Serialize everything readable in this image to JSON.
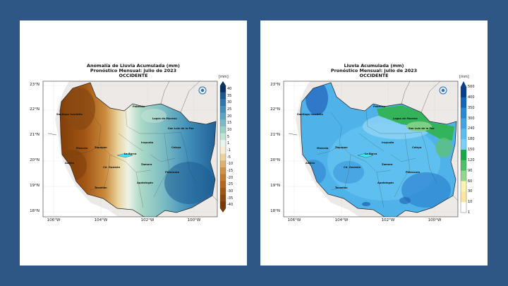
{
  "colors": {
    "background": "#2e5786",
    "card": "#ffffff",
    "land_outside": "#ece9e6",
    "sea": "#ffffff"
  },
  "maps": [
    {
      "title_line1": "Anomalía de Lluvia Acumulada (mm)",
      "title_line2": "Pronóstico Mensual: julio de 2023",
      "title_line3": "OCCIDENTE",
      "unit": "[mm]",
      "colorbar_ticks": [
        "40",
        "35",
        "30",
        "25",
        "20",
        "15",
        "10",
        "5",
        "1",
        "-1",
        "-5",
        "-10",
        "-15",
        "-20",
        "-25",
        "-30",
        "-35",
        "-40"
      ],
      "colorbar_colors": [
        "#053061",
        "#1a5a91",
        "#2e77ac",
        "#418fba",
        "#5aa5c4",
        "#79bbc4",
        "#9ad1c6",
        "#c0e3d6",
        "#eaf3ec",
        "#f6ecd4",
        "#ead39b",
        "#ddb06b",
        "#cf9143",
        "#c27a2b",
        "#b3661c",
        "#a25513",
        "#8e460d",
        "#7a3a08"
      ],
      "latitude_labels": [
        "23°N",
        "22°N",
        "21°N",
        "20°N",
        "19°N",
        "18°N"
      ],
      "longitude_labels": [
        "106°W",
        "104°W",
        "102°W",
        "100°W"
      ],
      "cities": [
        "Santiago Ixcuintla",
        "Pabellón",
        "Lagos de Moreno",
        "San Luis de la Paz",
        "Mezcala",
        "Zapopan",
        "Irapuato",
        "Celaya",
        "Autlán",
        "La Barca",
        "Cd. Guzmán",
        "Zamora",
        "Tecomán",
        "Pátzcuaro",
        "Apatzingán"
      ],
      "logo_text": "Climatología"
    },
    {
      "title_line1": "Lluvia Acumulada (mm)",
      "title_line2": "Pronóstico Mensual: julio de 2023",
      "title_line3": "OCCIDENTE",
      "unit": "[mm]",
      "colorbar_ticks": [
        "500",
        "400",
        "350",
        "300",
        "240",
        "180",
        "150",
        "120",
        "90",
        "60",
        "30",
        "10",
        "1"
      ],
      "colorbar_colors": [
        "#083e8c",
        "#1467b8",
        "#2a88d2",
        "#42a4e4",
        "#5cbdf0",
        "#7cd0f7",
        "#16a84b",
        "#4cc06a",
        "#93d98b",
        "#fcf4b0",
        "#fde6a0",
        "#ffffff"
      ],
      "latitude_labels": [
        "23°N",
        "22°N",
        "21°N",
        "20°N",
        "19°N",
        "18°N"
      ],
      "longitude_labels": [
        "106°W",
        "104°W",
        "102°W",
        "100°W"
      ],
      "cities": [
        "Santiago Ixcuintla",
        "Pabellón",
        "Lagos de Moreno",
        "San Luis de la Paz",
        "Mezcala",
        "Zapopan",
        "Irapuato",
        "Celaya",
        "Autlán",
        "La Barca",
        "Cd. Guzmán",
        "Zamora",
        "Tecomán",
        "Pátzcuaro",
        "Apatzingán"
      ],
      "logo_text": "Climatología"
    }
  ]
}
